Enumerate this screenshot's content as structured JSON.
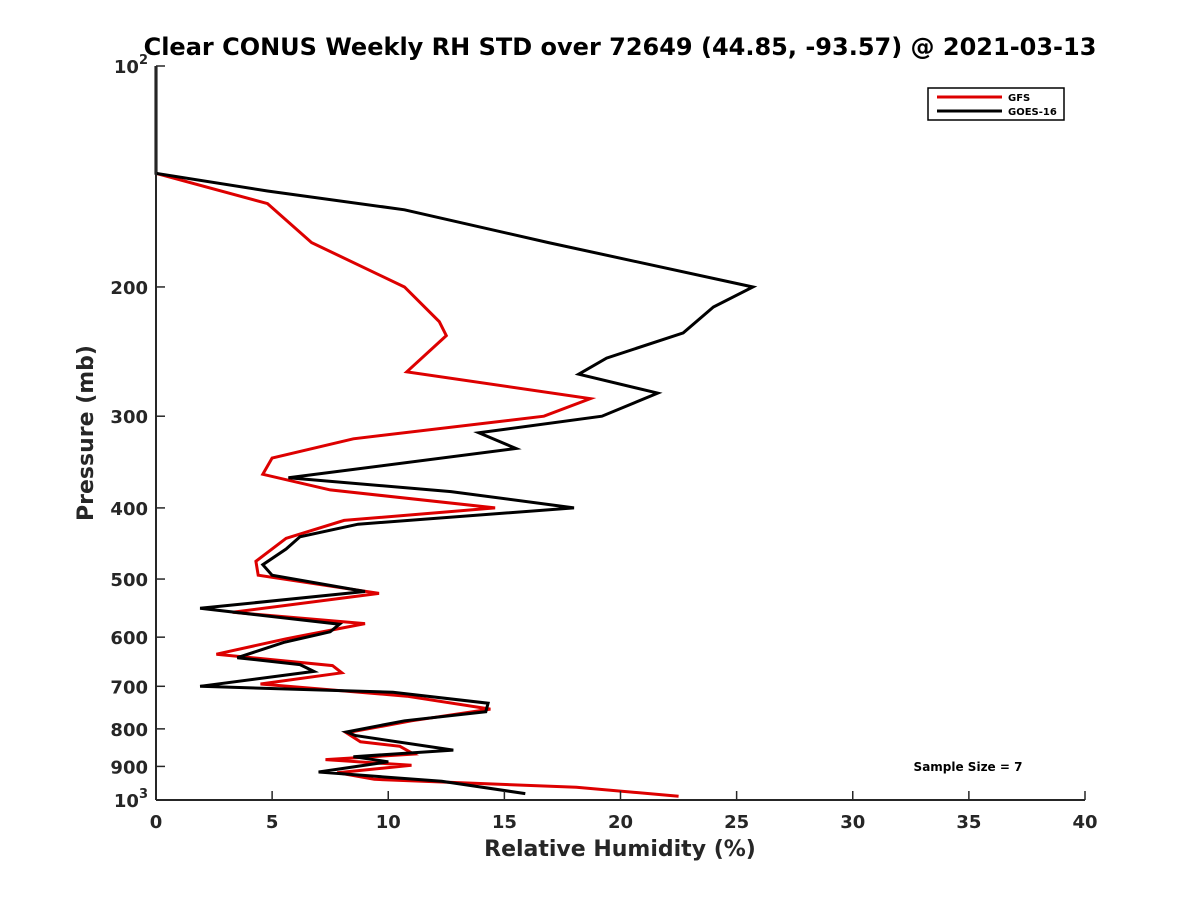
{
  "chart_data": {
    "type": "line",
    "title": "Clear CONUS Weekly RH STD over 72649 (44.85, -93.57) @ 2021-03-13",
    "xlabel": "Relative Humidity (%)",
    "ylabel": "Pressure (mb)",
    "xlim": [
      0,
      40
    ],
    "ylim": [
      100,
      1000
    ],
    "y_scale": "log",
    "y_reversed": true,
    "grid": false,
    "legend_position": "top-right",
    "x_ticks": [
      0,
      5,
      10,
      15,
      20,
      25,
      30,
      35,
      40
    ],
    "y_ticks": [
      {
        "value": 100,
        "base": "10",
        "exp": "2"
      },
      {
        "value": 200,
        "label": "200"
      },
      {
        "value": 300,
        "label": "300"
      },
      {
        "value": 400,
        "label": "400"
      },
      {
        "value": 500,
        "label": "500"
      },
      {
        "value": 600,
        "label": "600"
      },
      {
        "value": 700,
        "label": "700"
      },
      {
        "value": 800,
        "label": "800"
      },
      {
        "value": 900,
        "label": "900"
      },
      {
        "value": 1000,
        "base": "10",
        "exp": "3"
      }
    ],
    "series": [
      {
        "name": "GFS",
        "color": "#dd0000",
        "points": [
          [
            0,
            100
          ],
          [
            0,
            140
          ],
          [
            4.8,
            154
          ],
          [
            6.7,
            174
          ],
          [
            10.7,
            200
          ],
          [
            12.2,
            223
          ],
          [
            12.5,
            233
          ],
          [
            10.8,
            261
          ],
          [
            18.7,
            284
          ],
          [
            16.7,
            300
          ],
          [
            8.5,
            322
          ],
          [
            5.0,
            342
          ],
          [
            4.6,
            360
          ],
          [
            7.5,
            378
          ],
          [
            14.6,
            400
          ],
          [
            8.1,
            416
          ],
          [
            5.6,
            440
          ],
          [
            4.3,
            473
          ],
          [
            4.4,
            494
          ],
          [
            9.6,
            523
          ],
          [
            3.3,
            555
          ],
          [
            9.0,
            575
          ],
          [
            5.6,
            603
          ],
          [
            2.6,
            633
          ],
          [
            7.6,
            656
          ],
          [
            8.0,
            671
          ],
          [
            4.5,
            695
          ],
          [
            10.8,
            722
          ],
          [
            14.4,
            752
          ],
          [
            11.0,
            780
          ],
          [
            8.2,
            810
          ],
          [
            8.8,
            833
          ],
          [
            10.5,
            845
          ],
          [
            11.1,
            866
          ],
          [
            7.3,
            881
          ],
          [
            11.0,
            897
          ],
          [
            7.8,
            918
          ],
          [
            9.4,
            937
          ],
          [
            18.1,
            961
          ],
          [
            22.5,
            988
          ]
        ]
      },
      {
        "name": "GOES-16",
        "color": "#000000",
        "points": [
          [
            0,
            100
          ],
          [
            0,
            140
          ],
          [
            4.8,
            148
          ],
          [
            10.7,
            157
          ],
          [
            16.9,
            174
          ],
          [
            25.7,
            200
          ],
          [
            24.0,
            213
          ],
          [
            22.7,
            231
          ],
          [
            19.4,
            250
          ],
          [
            18.2,
            263
          ],
          [
            21.6,
            279
          ],
          [
            19.2,
            300
          ],
          [
            13.9,
            316
          ],
          [
            15.5,
            332
          ],
          [
            5.7,
            364
          ],
          [
            12.7,
            380
          ],
          [
            18.0,
            400
          ],
          [
            8.7,
            421
          ],
          [
            6.2,
            438
          ],
          [
            5.6,
            455
          ],
          [
            4.6,
            478
          ],
          [
            5.0,
            494
          ],
          [
            9.0,
            520
          ],
          [
            1.9,
            548
          ],
          [
            7.9,
            576
          ],
          [
            7.5,
            590
          ],
          [
            5.5,
            610
          ],
          [
            3.5,
            640
          ],
          [
            6.2,
            654
          ],
          [
            6.8,
            668
          ],
          [
            1.9,
            700
          ],
          [
            10.2,
            713
          ],
          [
            14.3,
            738
          ],
          [
            14.2,
            758
          ],
          [
            10.7,
            780
          ],
          [
            8.2,
            808
          ],
          [
            8.6,
            817
          ],
          [
            12.8,
            855
          ],
          [
            8.5,
            873
          ],
          [
            10.0,
            887
          ],
          [
            7.0,
            916
          ],
          [
            12.3,
            943
          ],
          [
            15.9,
            980
          ]
        ]
      }
    ],
    "annotation": "Sample Size = 7"
  }
}
